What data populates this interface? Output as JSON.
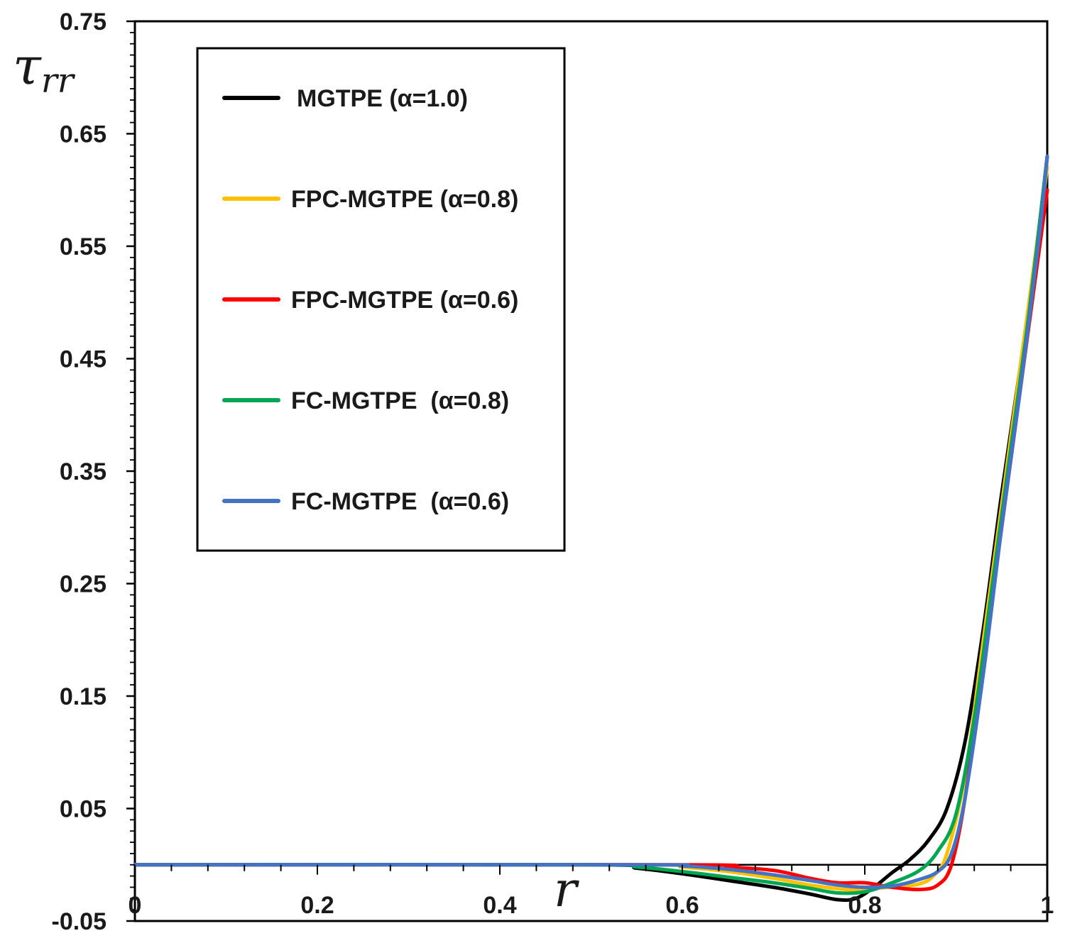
{
  "chart_data": {
    "type": "line",
    "title": "",
    "xlabel": "r",
    "ylabel": "τrr",
    "ylabel_main": "τ",
    "ylabel_sub": "rr",
    "xlim": [
      0,
      1
    ],
    "ylim": [
      -0.05,
      0.75
    ],
    "x_ticks": [
      0,
      0.2,
      0.4,
      0.6,
      0.8,
      1
    ],
    "x_tick_labels": [
      "0",
      "0.2",
      "0.4",
      "0.6",
      "0.8",
      "1"
    ],
    "y_ticks": [
      -0.05,
      0.05,
      0.15,
      0.25,
      0.35,
      0.45,
      0.55,
      0.65,
      0.75
    ],
    "y_tick_labels": [
      "-0.05",
      "0.05",
      "0.15",
      "0.25",
      "0.35",
      "0.45",
      "0.55",
      "0.65",
      "0.75"
    ],
    "grid": false,
    "legend_position": "top-left",
    "series": [
      {
        "name": "MGTPE (α=1.0)",
        "color": "#000000",
        "points": [
          [
            0,
            0
          ],
          [
            0.5,
            0
          ],
          [
            0.55,
            -0.003
          ],
          [
            0.6,
            -0.008
          ],
          [
            0.65,
            -0.014
          ],
          [
            0.7,
            -0.02
          ],
          [
            0.74,
            -0.026
          ],
          [
            0.77,
            -0.031
          ],
          [
            0.79,
            -0.03
          ],
          [
            0.81,
            -0.02
          ],
          [
            0.83,
            -0.007
          ],
          [
            0.85,
            0.005
          ],
          [
            0.87,
            0.022
          ],
          [
            0.89,
            0.05
          ],
          [
            0.91,
            0.11
          ],
          [
            0.93,
            0.21
          ],
          [
            0.95,
            0.33
          ],
          [
            0.97,
            0.44
          ],
          [
            0.99,
            0.56
          ],
          [
            1,
            0.63
          ]
        ]
      },
      {
        "name": "FPC-MGTPE (α=0.8)",
        "color": "#FFC000",
        "points": [
          [
            0,
            0
          ],
          [
            0.55,
            0
          ],
          [
            0.6,
            -0.002
          ],
          [
            0.65,
            -0.006
          ],
          [
            0.7,
            -0.012
          ],
          [
            0.74,
            -0.018
          ],
          [
            0.78,
            -0.022
          ],
          [
            0.81,
            -0.021
          ],
          [
            0.84,
            -0.019
          ],
          [
            0.86,
            -0.017
          ],
          [
            0.875,
            -0.01
          ],
          [
            0.89,
            0.01
          ],
          [
            0.91,
            0.08
          ],
          [
            0.93,
            0.2
          ],
          [
            0.95,
            0.32
          ],
          [
            0.97,
            0.44
          ],
          [
            0.99,
            0.56
          ],
          [
            1,
            0.62
          ]
        ]
      },
      {
        "name": "FPC-MGTPE (α=0.6)",
        "color": "#FF0000",
        "points": [
          [
            0,
            0
          ],
          [
            0.6,
            0
          ],
          [
            0.65,
            -0.002
          ],
          [
            0.7,
            -0.005
          ],
          [
            0.74,
            -0.012
          ],
          [
            0.77,
            -0.016
          ],
          [
            0.8,
            -0.016
          ],
          [
            0.83,
            -0.02
          ],
          [
            0.86,
            -0.022
          ],
          [
            0.88,
            -0.018
          ],
          [
            0.895,
            0
          ],
          [
            0.91,
            0.06
          ],
          [
            0.93,
            0.18
          ],
          [
            0.95,
            0.3
          ],
          [
            0.97,
            0.42
          ],
          [
            0.99,
            0.54
          ],
          [
            1,
            0.6
          ]
        ]
      },
      {
        "name": "FC-MGTPE  (α=0.8)",
        "color": "#00A651",
        "points": [
          [
            0,
            0
          ],
          [
            0.5,
            0
          ],
          [
            0.55,
            -0.002
          ],
          [
            0.6,
            -0.006
          ],
          [
            0.65,
            -0.011
          ],
          [
            0.7,
            -0.016
          ],
          [
            0.74,
            -0.021
          ],
          [
            0.77,
            -0.025
          ],
          [
            0.8,
            -0.024
          ],
          [
            0.83,
            -0.016
          ],
          [
            0.86,
            -0.005
          ],
          [
            0.88,
            0.012
          ],
          [
            0.9,
            0.045
          ],
          [
            0.92,
            0.13
          ],
          [
            0.94,
            0.25
          ],
          [
            0.96,
            0.37
          ],
          [
            0.98,
            0.49
          ],
          [
            1,
            0.63
          ]
        ]
      },
      {
        "name": "FC-MGTPE  (α=0.6)",
        "color": "#4472C4",
        "points": [
          [
            0,
            0
          ],
          [
            0.55,
            0
          ],
          [
            0.6,
            -0.001
          ],
          [
            0.65,
            -0.004
          ],
          [
            0.7,
            -0.009
          ],
          [
            0.74,
            -0.014
          ],
          [
            0.77,
            -0.018
          ],
          [
            0.8,
            -0.02
          ],
          [
            0.83,
            -0.019
          ],
          [
            0.86,
            -0.013
          ],
          [
            0.88,
            -0.006
          ],
          [
            0.895,
            0.01
          ],
          [
            0.91,
            0.06
          ],
          [
            0.93,
            0.17
          ],
          [
            0.95,
            0.3
          ],
          [
            0.97,
            0.42
          ],
          [
            0.99,
            0.55
          ],
          [
            1,
            0.63
          ]
        ]
      }
    ]
  }
}
